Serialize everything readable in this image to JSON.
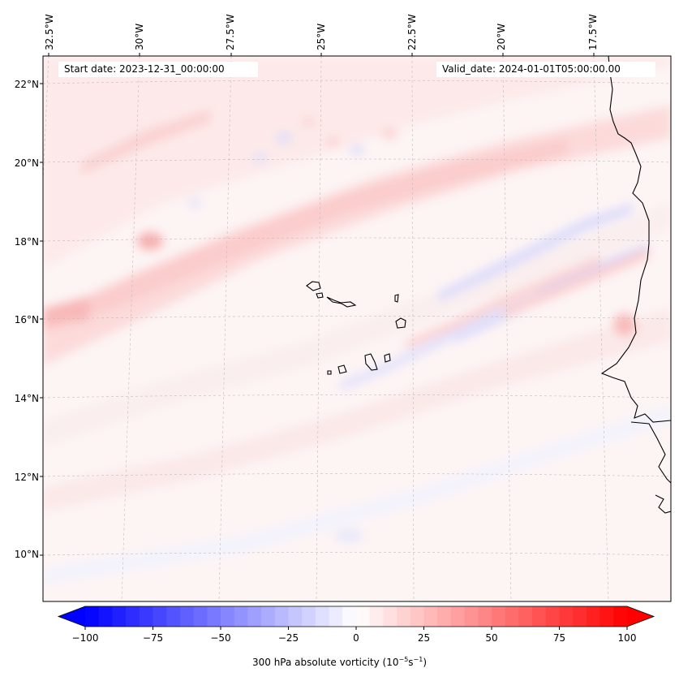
{
  "map": {
    "title_left": "Start date: 2023-12-31_00:00:00",
    "title_right": "Valid_date: 2024-01-01T05:00:00.00",
    "lon_labels": [
      "32.5°W",
      "30°W",
      "27.5°W",
      "25°W",
      "22.5°W",
      "20°W",
      "17.5°W"
    ],
    "lat_labels": [
      "22°N",
      "20°N",
      "18°N",
      "16°N",
      "14°N",
      "12°N",
      "10°N"
    ],
    "field": "300 hPa absolute vorticity",
    "extent": {
      "lon": [
        -33.0,
        -15.5
      ],
      "lat": [
        8.8,
        22.8
      ]
    }
  },
  "colorbar": {
    "label_text": "300 hPa absolute vorticity (10",
    "label_exp1": "−5",
    "label_mid": "s",
    "label_exp2": "−1",
    "label_close": ")",
    "ticks": [
      "−100",
      "−75",
      "−50",
      "−25",
      "0",
      "25",
      "50",
      "75",
      "100"
    ],
    "range": [
      -100,
      100
    ],
    "cmap": "bwr",
    "low_color": "#0000ff",
    "mid_color": "#ffffff",
    "high_color": "#ff0000"
  }
}
